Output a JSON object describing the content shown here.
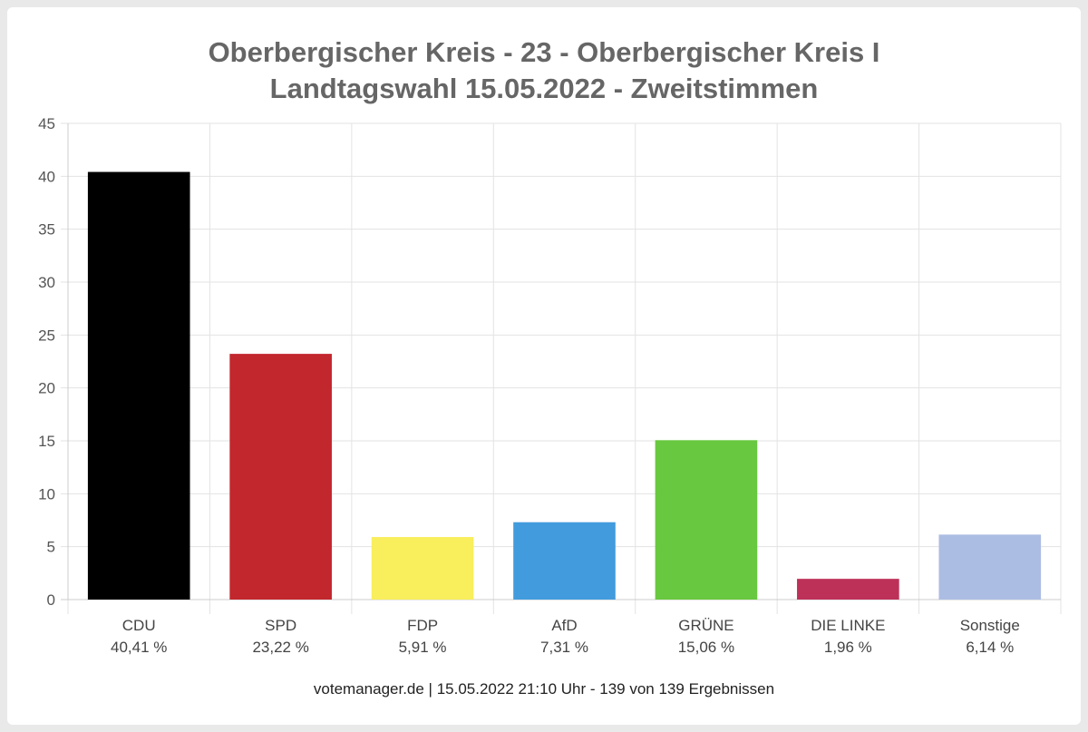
{
  "chart_data": {
    "type": "bar",
    "title": [
      "Oberbergischer Kreis - 23 - Oberbergischer Kreis I",
      "Landtagswahl 15.05.2022  - Zweitstimmen"
    ],
    "categories": [
      "CDU",
      "SPD",
      "FDP",
      "AfD",
      "GRÜNE",
      "DIE LINKE",
      "Sonstige"
    ],
    "value_labels": [
      "40,41 %",
      "23,22 %",
      "5,91 %",
      "7,31 %",
      "15,06 %",
      "1,96 %",
      "6,14 %"
    ],
    "values": [
      40.41,
      23.22,
      5.91,
      7.31,
      15.06,
      1.96,
      6.14
    ],
    "colors": [
      "#000000",
      "#c2272d",
      "#f9ee5c",
      "#429bdc",
      "#68c83f",
      "#bd3158",
      "#acbde3"
    ],
    "ylim": [
      0,
      45
    ],
    "yticks": [
      0,
      5,
      10,
      15,
      20,
      25,
      30,
      35,
      40,
      45
    ],
    "grid": true,
    "footer": "votemanager.de | 15.05.2022 21:10 Uhr - 139 von 139 Ergebnissen"
  }
}
